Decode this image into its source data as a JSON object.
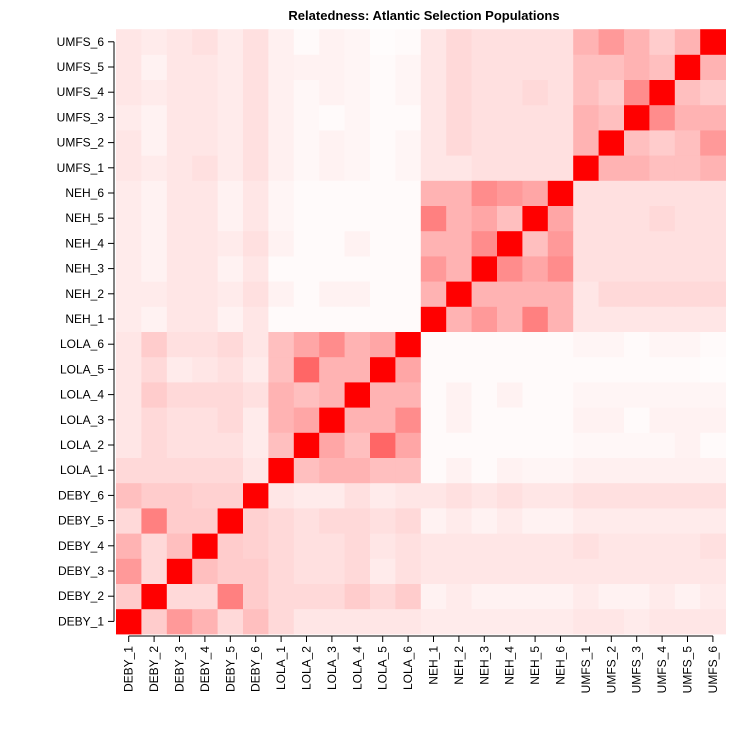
{
  "chart_data": {
    "type": "heatmap",
    "title": "Relatedness: Atlantic Selection Populations",
    "xlabel": "",
    "ylabel": "",
    "categories": [
      "DEBY_1",
      "DEBY_2",
      "DEBY_3",
      "DEBY_4",
      "DEBY_5",
      "DEBY_6",
      "LOLA_1",
      "LOLA_2",
      "LOLA_3",
      "LOLA_4",
      "LOLA_5",
      "LOLA_6",
      "NEH_1",
      "NEH_2",
      "NEH_3",
      "NEH_4",
      "NEH_5",
      "NEH_6",
      "UMFS_1",
      "UMFS_2",
      "UMFS_3",
      "UMFS_4",
      "UMFS_5",
      "UMFS_6"
    ],
    "color_low": "#ffffff",
    "color_high": "#ff0000",
    "value_range": [
      0,
      1
    ],
    "grid": false,
    "legend": "none",
    "matrix": [
      [
        1.0,
        0.2,
        0.4,
        0.3,
        0.15,
        0.25,
        0.15,
        0.1,
        0.1,
        0.1,
        0.1,
        0.1,
        0.08,
        0.08,
        0.08,
        0.08,
        0.08,
        0.08,
        0.1,
        0.1,
        0.08,
        0.1,
        0.1,
        0.1
      ],
      [
        0.2,
        1.0,
        0.15,
        0.15,
        0.5,
        0.2,
        0.15,
        0.15,
        0.15,
        0.2,
        0.15,
        0.2,
        0.05,
        0.08,
        0.05,
        0.05,
        0.05,
        0.05,
        0.08,
        0.05,
        0.05,
        0.08,
        0.05,
        0.08
      ],
      [
        0.4,
        0.15,
        1.0,
        0.25,
        0.2,
        0.2,
        0.15,
        0.12,
        0.12,
        0.15,
        0.08,
        0.12,
        0.1,
        0.1,
        0.1,
        0.1,
        0.1,
        0.1,
        0.1,
        0.1,
        0.1,
        0.1,
        0.1,
        0.1
      ],
      [
        0.3,
        0.15,
        0.25,
        1.0,
        0.2,
        0.18,
        0.15,
        0.12,
        0.12,
        0.15,
        0.1,
        0.12,
        0.1,
        0.1,
        0.1,
        0.1,
        0.1,
        0.1,
        0.12,
        0.1,
        0.1,
        0.1,
        0.1,
        0.12
      ],
      [
        0.15,
        0.5,
        0.2,
        0.2,
        1.0,
        0.18,
        0.15,
        0.12,
        0.15,
        0.15,
        0.12,
        0.15,
        0.05,
        0.08,
        0.05,
        0.08,
        0.05,
        0.05,
        0.08,
        0.08,
        0.08,
        0.08,
        0.08,
        0.08
      ],
      [
        0.25,
        0.2,
        0.2,
        0.18,
        0.18,
        1.0,
        0.1,
        0.08,
        0.08,
        0.12,
        0.08,
        0.1,
        0.1,
        0.12,
        0.1,
        0.12,
        0.1,
        0.1,
        0.12,
        0.12,
        0.12,
        0.12,
        0.12,
        0.12
      ],
      [
        0.15,
        0.15,
        0.15,
        0.15,
        0.15,
        0.1,
        1.0,
        0.25,
        0.3,
        0.3,
        0.25,
        0.25,
        0.02,
        0.05,
        0.02,
        0.05,
        0.04,
        0.04,
        0.06,
        0.06,
        0.06,
        0.06,
        0.06,
        0.06
      ],
      [
        0.1,
        0.15,
        0.12,
        0.12,
        0.12,
        0.08,
        0.25,
        1.0,
        0.35,
        0.25,
        0.6,
        0.35,
        0.02,
        0.02,
        0.02,
        0.02,
        0.02,
        0.02,
        0.03,
        0.03,
        0.03,
        0.03,
        0.05,
        0.02
      ],
      [
        0.1,
        0.15,
        0.12,
        0.12,
        0.15,
        0.08,
        0.3,
        0.35,
        1.0,
        0.3,
        0.3,
        0.45,
        0.02,
        0.05,
        0.02,
        0.02,
        0.02,
        0.02,
        0.05,
        0.05,
        0.02,
        0.05,
        0.05,
        0.05
      ],
      [
        0.1,
        0.2,
        0.15,
        0.15,
        0.15,
        0.12,
        0.3,
        0.25,
        0.3,
        1.0,
        0.3,
        0.3,
        0.02,
        0.05,
        0.02,
        0.05,
        0.02,
        0.02,
        0.04,
        0.04,
        0.04,
        0.04,
        0.04,
        0.04
      ],
      [
        0.1,
        0.15,
        0.08,
        0.1,
        0.12,
        0.08,
        0.25,
        0.6,
        0.3,
        0.3,
        1.0,
        0.35,
        0.02,
        0.02,
        0.02,
        0.02,
        0.02,
        0.02,
        0.02,
        0.02,
        0.02,
        0.02,
        0.02,
        0.01
      ],
      [
        0.1,
        0.2,
        0.12,
        0.12,
        0.15,
        0.1,
        0.25,
        0.35,
        0.45,
        0.3,
        0.35,
        1.0,
        0.02,
        0.02,
        0.02,
        0.02,
        0.02,
        0.02,
        0.04,
        0.04,
        0.02,
        0.04,
        0.04,
        0.02
      ],
      [
        0.08,
        0.05,
        0.1,
        0.1,
        0.05,
        0.1,
        0.02,
        0.02,
        0.02,
        0.02,
        0.02,
        0.02,
        1.0,
        0.3,
        0.4,
        0.3,
        0.5,
        0.3,
        0.1,
        0.1,
        0.1,
        0.1,
        0.1,
        0.1
      ],
      [
        0.08,
        0.08,
        0.1,
        0.1,
        0.08,
        0.12,
        0.05,
        0.02,
        0.05,
        0.05,
        0.02,
        0.02,
        0.3,
        1.0,
        0.3,
        0.3,
        0.3,
        0.3,
        0.1,
        0.15,
        0.15,
        0.15,
        0.15,
        0.15
      ],
      [
        0.08,
        0.05,
        0.1,
        0.1,
        0.05,
        0.1,
        0.02,
        0.02,
        0.02,
        0.02,
        0.02,
        0.02,
        0.4,
        0.3,
        1.0,
        0.45,
        0.35,
        0.45,
        0.12,
        0.12,
        0.12,
        0.12,
        0.12,
        0.12
      ],
      [
        0.08,
        0.05,
        0.1,
        0.1,
        0.08,
        0.12,
        0.05,
        0.02,
        0.02,
        0.05,
        0.02,
        0.02,
        0.3,
        0.3,
        0.45,
        1.0,
        0.25,
        0.4,
        0.12,
        0.12,
        0.12,
        0.12,
        0.12,
        0.12
      ],
      [
        0.08,
        0.05,
        0.1,
        0.1,
        0.05,
        0.1,
        0.04,
        0.02,
        0.02,
        0.02,
        0.02,
        0.02,
        0.5,
        0.3,
        0.35,
        0.25,
        1.0,
        0.35,
        0.12,
        0.12,
        0.12,
        0.15,
        0.12,
        0.12
      ],
      [
        0.08,
        0.05,
        0.1,
        0.1,
        0.05,
        0.1,
        0.04,
        0.02,
        0.02,
        0.02,
        0.02,
        0.02,
        0.3,
        0.3,
        0.45,
        0.4,
        0.35,
        1.0,
        0.12,
        0.12,
        0.12,
        0.12,
        0.12,
        0.12
      ],
      [
        0.1,
        0.08,
        0.1,
        0.12,
        0.08,
        0.12,
        0.06,
        0.03,
        0.05,
        0.04,
        0.02,
        0.04,
        0.1,
        0.1,
        0.12,
        0.12,
        0.12,
        0.12,
        1.0,
        0.3,
        0.3,
        0.25,
        0.25,
        0.3
      ],
      [
        0.1,
        0.05,
        0.1,
        0.1,
        0.08,
        0.12,
        0.06,
        0.03,
        0.05,
        0.04,
        0.02,
        0.04,
        0.1,
        0.15,
        0.12,
        0.12,
        0.12,
        0.12,
        0.3,
        1.0,
        0.25,
        0.2,
        0.25,
        0.4
      ],
      [
        0.08,
        0.05,
        0.1,
        0.1,
        0.08,
        0.12,
        0.06,
        0.03,
        0.02,
        0.04,
        0.02,
        0.02,
        0.1,
        0.15,
        0.12,
        0.12,
        0.12,
        0.12,
        0.3,
        0.25,
        1.0,
        0.45,
        0.3,
        0.3
      ],
      [
        0.1,
        0.08,
        0.1,
        0.1,
        0.08,
        0.12,
        0.06,
        0.03,
        0.05,
        0.04,
        0.02,
        0.04,
        0.1,
        0.15,
        0.12,
        0.12,
        0.15,
        0.12,
        0.25,
        0.2,
        0.45,
        1.0,
        0.25,
        0.2
      ],
      [
        0.1,
        0.05,
        0.1,
        0.1,
        0.08,
        0.12,
        0.06,
        0.05,
        0.05,
        0.04,
        0.02,
        0.04,
        0.1,
        0.15,
        0.12,
        0.12,
        0.12,
        0.12,
        0.25,
        0.25,
        0.3,
        0.25,
        1.0,
        0.3
      ],
      [
        0.1,
        0.08,
        0.1,
        0.12,
        0.08,
        0.12,
        0.06,
        0.02,
        0.05,
        0.04,
        0.01,
        0.02,
        0.1,
        0.15,
        0.12,
        0.12,
        0.12,
        0.12,
        0.3,
        0.4,
        0.3,
        0.2,
        0.3,
        1.0
      ]
    ]
  }
}
